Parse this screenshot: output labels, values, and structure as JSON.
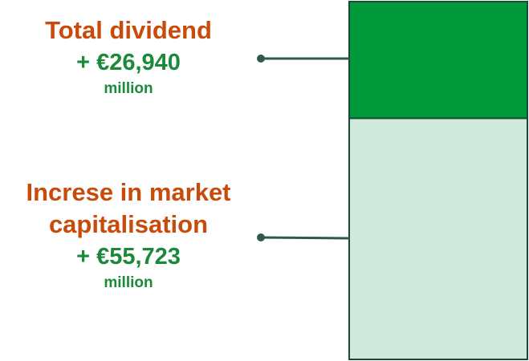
{
  "chart_data": {
    "type": "bar",
    "stacked": true,
    "series": [
      {
        "name": "Increse in market capitalisation",
        "color": "#cfe9dc",
        "values": [
          55723
        ],
        "value_labels": [
          "+ €55,723"
        ]
      },
      {
        "name": "Total dividend",
        "color": "#009a3a",
        "values": [
          26940
        ],
        "value_labels": [
          "+ €26,940"
        ]
      }
    ],
    "value_unit": "million"
  }
}
